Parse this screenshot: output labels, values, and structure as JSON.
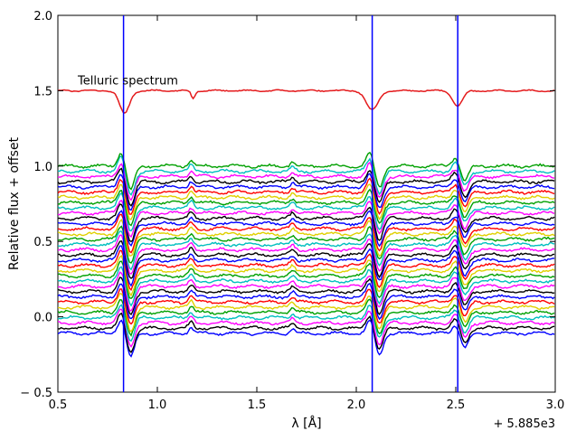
{
  "chart_data": {
    "type": "line",
    "title": "",
    "xlabel": "λ [Å]",
    "ylabel": "Relative flux + offset",
    "xlim": [
      0.5,
      3.0
    ],
    "ylim": [
      -0.5,
      2.0
    ],
    "x_offset_label": "+ 5.885e3",
    "x_ticks": [
      0.5,
      1.0,
      1.5,
      2.0,
      2.5,
      3.0
    ],
    "x_tick_labels": [
      "0.5",
      "1.0",
      "1.5",
      "2.0",
      "2.5",
      "3.0"
    ],
    "y_ticks": [
      -0.5,
      0.0,
      0.5,
      1.0,
      1.5,
      2.0
    ],
    "y_tick_labels": [
      "− 0.5",
      "0.0",
      "0.5",
      "1.0",
      "1.5",
      "2.0"
    ],
    "grid": false,
    "annotations": [
      {
        "text": "Telluric spectrum",
        "x": 0.6,
        "y": 1.57
      }
    ],
    "vertical_lines": [
      {
        "x": 0.83,
        "color": "#0000ff"
      },
      {
        "x": 2.08,
        "color": "#0000ff"
      },
      {
        "x": 2.51,
        "color": "#0000ff"
      }
    ],
    "telluric": {
      "color": "#e41a1c",
      "baseline": 1.5,
      "absorption": [
        {
          "center": 0.835,
          "depth": 0.15,
          "width": 0.025
        },
        {
          "center": 1.18,
          "depth": 0.05,
          "width": 0.01
        },
        {
          "center": 2.08,
          "depth": 0.13,
          "width": 0.03
        },
        {
          "center": 2.51,
          "depth": 0.1,
          "width": 0.025
        }
      ]
    },
    "stacked_spectra": {
      "count": 33,
      "top_baseline": 1.0,
      "bottom_baseline": -0.11,
      "colors": [
        "#0000ff",
        "#000000",
        "#ff00ff",
        "#00bfbf",
        "#00a000",
        "#e0d000",
        "#ff0000"
      ],
      "features": [
        {
          "center": 0.82,
          "type": "p-cygni",
          "amplitude": 0.1
        },
        {
          "center": 2.07,
          "type": "p-cygni",
          "amplitude": 0.09
        },
        {
          "center": 2.5,
          "type": "p-cygni",
          "amplitude": 0.06
        },
        {
          "center": 1.17,
          "type": "emission",
          "amplitude": 0.04
        },
        {
          "center": 1.68,
          "type": "emission",
          "amplitude": 0.03
        }
      ]
    }
  }
}
